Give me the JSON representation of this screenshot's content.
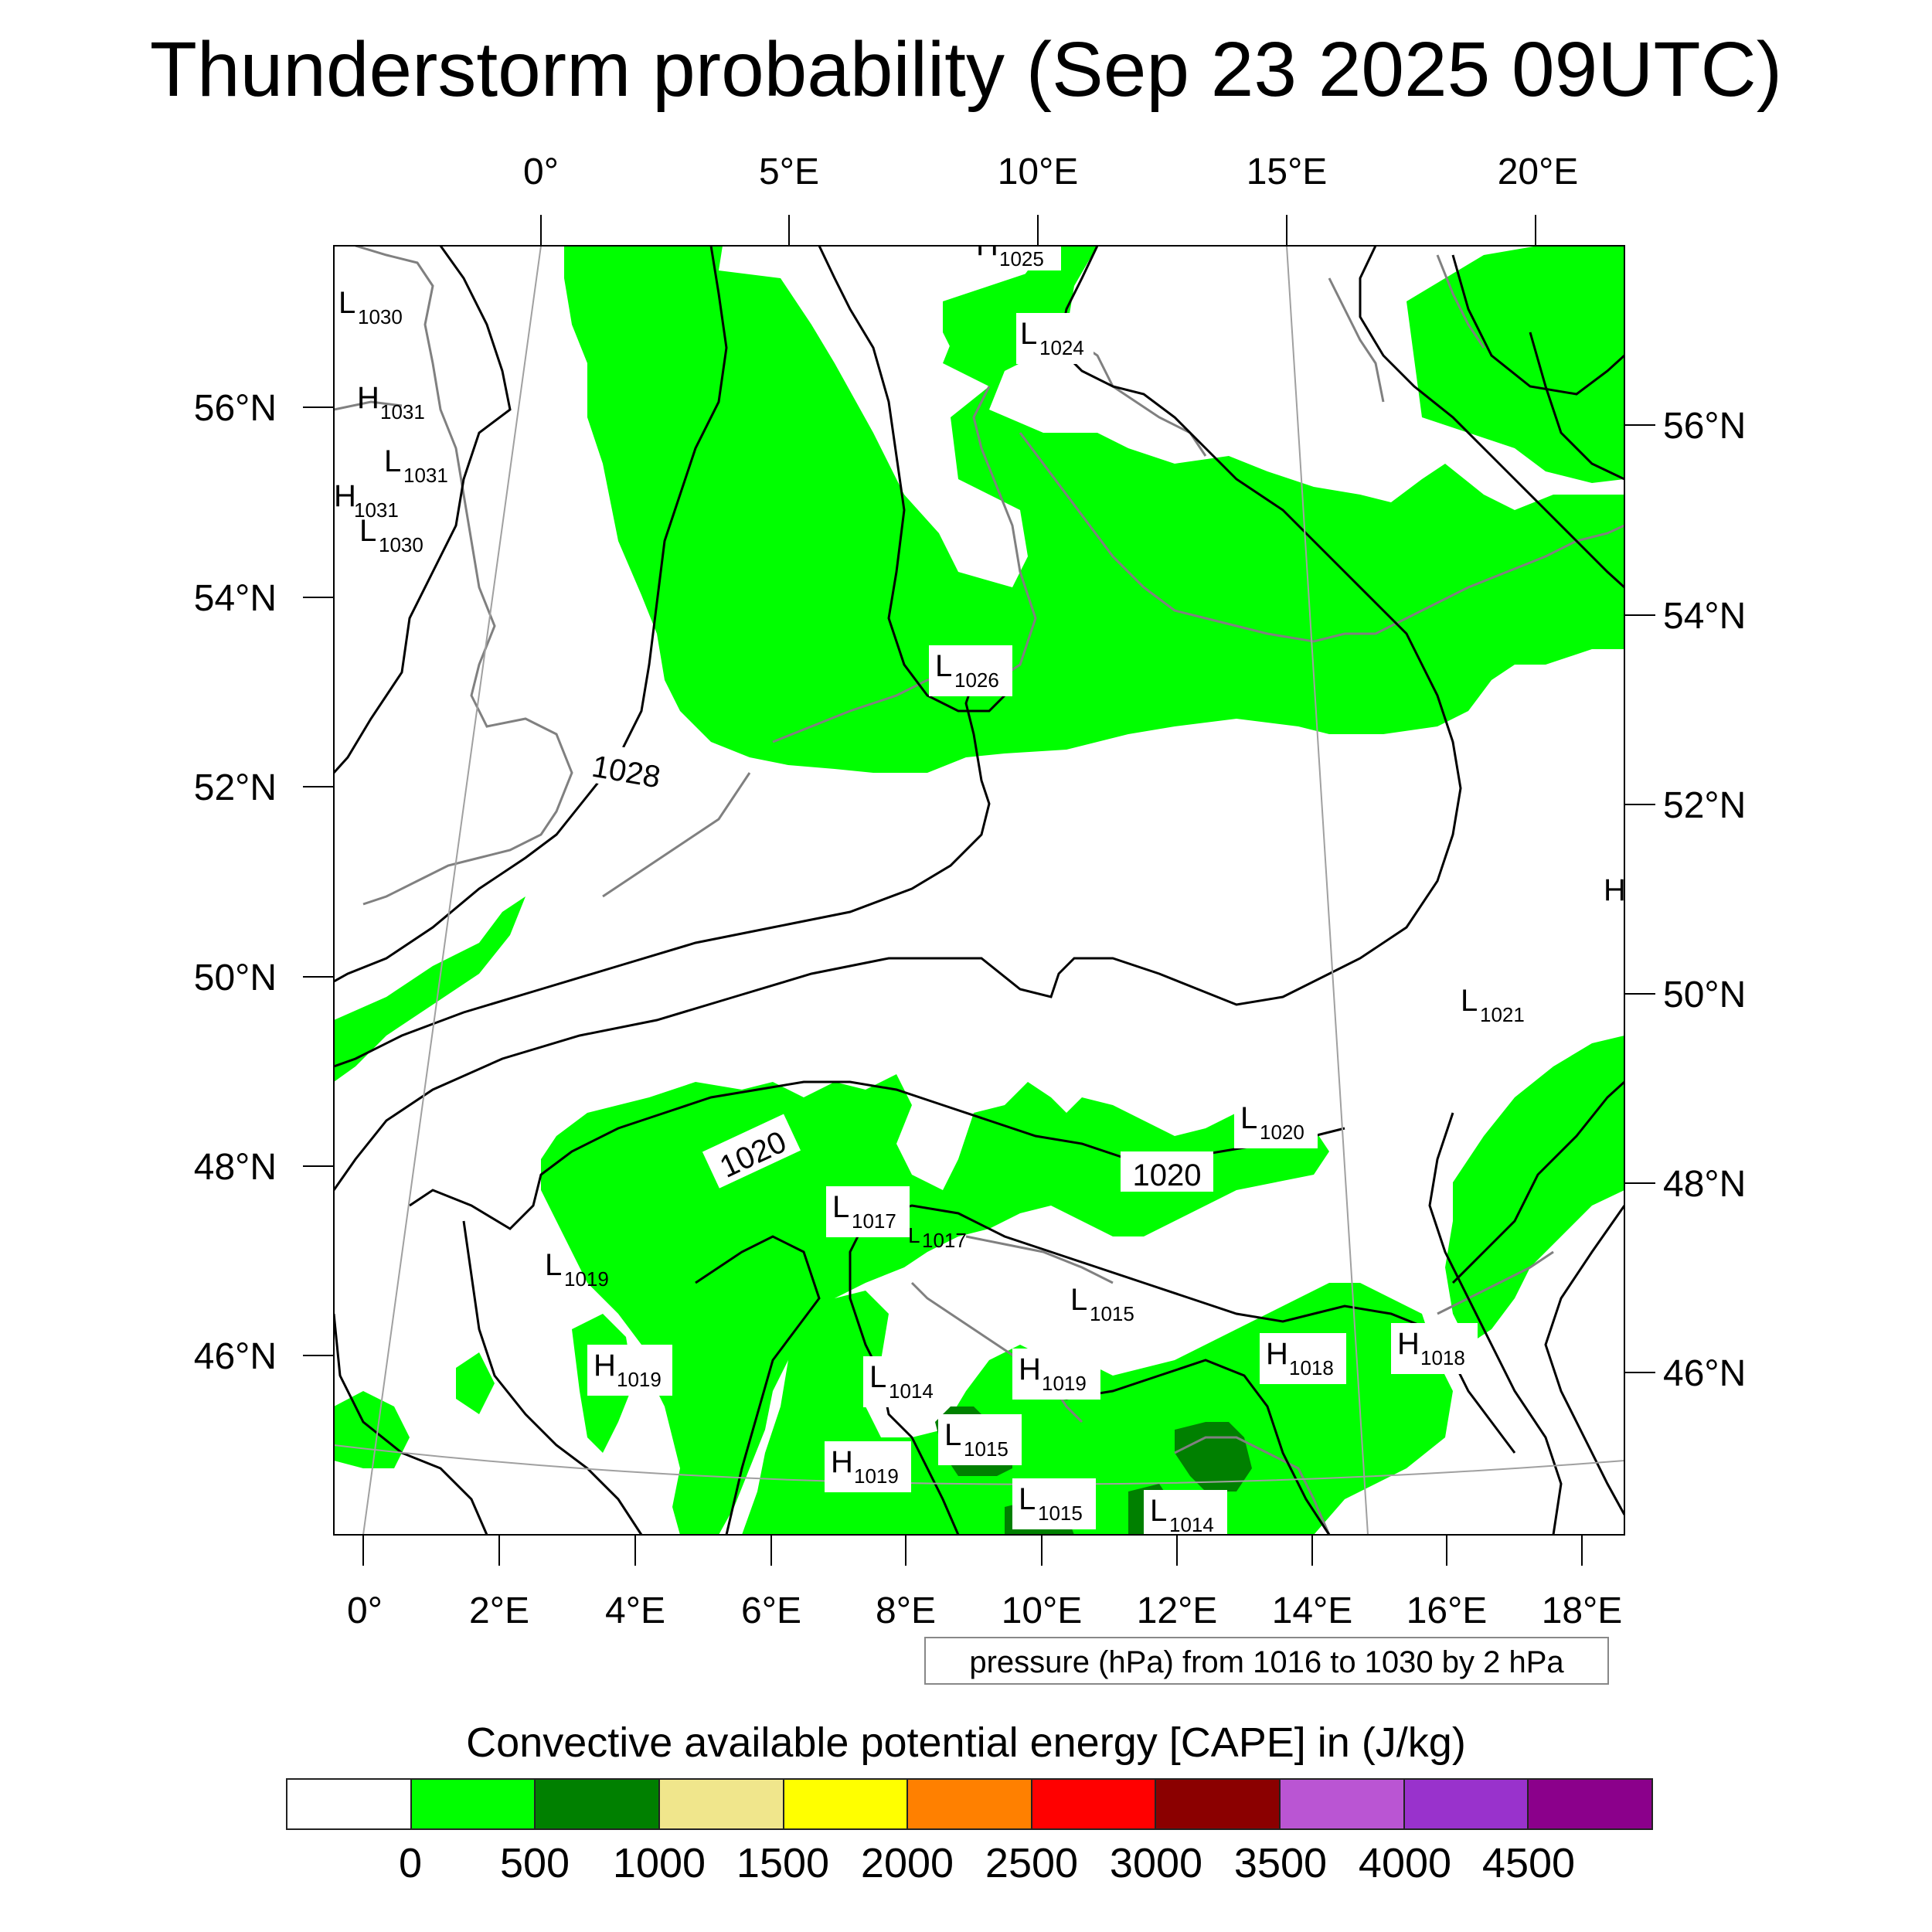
{
  "title": "Thunderstorm probability (Sep 23 2025 09UTC)",
  "colors": {
    "cape_0_500": "#00ff00",
    "cape_500_1000": "#008000",
    "coast": "#808080",
    "isobar": "#000000"
  },
  "axes": {
    "top_lon_labels": [
      "0°",
      "5°E",
      "10°E",
      "15°E",
      "20°E"
    ],
    "bottom_lon_labels": [
      "0°",
      "2°E",
      "4°E",
      "6°E",
      "8°E",
      "10°E",
      "12°E",
      "14°E",
      "16°E",
      "18°E"
    ],
    "left_lat_labels": [
      "56°N",
      "54°N",
      "52°N",
      "50°N",
      "48°N",
      "46°N"
    ],
    "right_lat_labels": [
      "56°N",
      "54°N",
      "52°N",
      "50°N",
      "48°N",
      "46°N"
    ]
  },
  "isobar_labels": [
    "1028",
    "1020",
    "1020"
  ],
  "pressure_systems": [
    {
      "type": "H",
      "value": "1025"
    },
    {
      "type": "L",
      "value": "1030"
    },
    {
      "type": "H",
      "value": "1031"
    },
    {
      "type": "L",
      "value": "1031"
    },
    {
      "type": "H",
      "value": "1031"
    },
    {
      "type": "L",
      "value": "1030"
    },
    {
      "type": "L",
      "value": "1024"
    },
    {
      "type": "L",
      "value": "1026"
    },
    {
      "type": "L",
      "value": "1021"
    },
    {
      "type": "L",
      "value": "1020"
    },
    {
      "type": "L",
      "value": "1017"
    },
    {
      "type": "L",
      "value": "1017"
    },
    {
      "type": "L",
      "value": "1019"
    },
    {
      "type": "L",
      "value": "1015"
    },
    {
      "type": "H",
      "value": "1019"
    },
    {
      "type": "L",
      "value": "1014"
    },
    {
      "type": "H",
      "value": "1019"
    },
    {
      "type": "H",
      "value": "1018"
    },
    {
      "type": "H",
      "value": "1018"
    },
    {
      "type": "L",
      "value": "1015"
    },
    {
      "type": "H",
      "value": "1019"
    },
    {
      "type": "L",
      "value": "1015"
    },
    {
      "type": "L",
      "value": "1014"
    },
    {
      "type": "H",
      "value": ""
    }
  ],
  "pressure_note": "pressure (hPa) from 1016 to 1030 by 2 hPa",
  "colorbar": {
    "title": "Convective available potential energy [CAPE] in (J/kg)",
    "colors": [
      "#ffffff",
      "#00ff00",
      "#008000",
      "#f0e68c",
      "#ffff00",
      "#ff8000",
      "#ff0000",
      "#8b0000",
      "#ba55d3",
      "#9932cc",
      "#8b008b"
    ],
    "tick_labels": [
      "0",
      "500",
      "1000",
      "1500",
      "2000",
      "2500",
      "3000",
      "3500",
      "4000",
      "4500"
    ]
  }
}
